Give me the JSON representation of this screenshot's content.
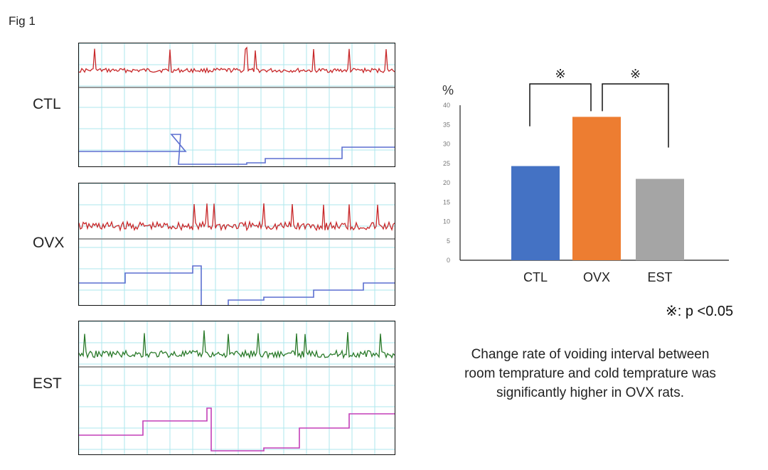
{
  "figure_label": "Fig 1",
  "traces": [
    {
      "label": "CTL",
      "upper_color": "#c8282a",
      "lower_color": "#5b6fd0"
    },
    {
      "label": "OVX",
      "upper_color": "#c8282a",
      "lower_color": "#5b6fd0"
    },
    {
      "label": "EST",
      "upper_color": "#2a7a2a",
      "lower_color": "#c33fb8"
    }
  ],
  "chart_data": {
    "type": "bar",
    "categories": [
      "CTL",
      "OVX",
      "EST"
    ],
    "values": [
      24.3,
      37.0,
      21.0
    ],
    "colors": [
      "#4472c4",
      "#ed7d31",
      "#a5a5a5"
    ],
    "title": "",
    "xlabel": "",
    "ylabel": "%",
    "ylim": [
      0,
      40
    ],
    "yticks": [
      0,
      5,
      10,
      15,
      20,
      25,
      30,
      35,
      40
    ],
    "grid": false,
    "significance": [
      {
        "from": "CTL",
        "to": "OVX",
        "marker": "※"
      },
      {
        "from": "OVX",
        "to": "EST",
        "marker": "※"
      }
    ]
  },
  "significance_note": "※: p <0.05",
  "caption": [
    "Change rate of voiding interval between",
    "room temprature and cold temprature was",
    "significantly higher in OVX rats."
  ]
}
